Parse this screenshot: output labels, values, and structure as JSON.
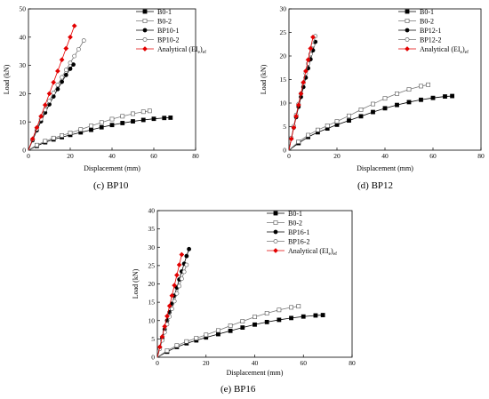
{
  "figure_title": "",
  "chart_data": [
    {
      "id": "c",
      "type": "line",
      "caption_letter": "(c)",
      "caption_text": "BP10",
      "xlabel": "Displacement (mm)",
      "ylabel": "Load (kN)",
      "xlim": [
        0,
        80
      ],
      "ylim": [
        0,
        50
      ],
      "xticks": [
        0,
        20,
        40,
        60,
        80
      ],
      "yticks": [
        0,
        10,
        20,
        30,
        40,
        50
      ],
      "grid": false,
      "legend_position": "top-right",
      "series": [
        {
          "name": "B0-1",
          "marker": "square",
          "fill": "#000000",
          "line": "#000000",
          "x": [
            0,
            4,
            8,
            12,
            16,
            20,
            25,
            30,
            35,
            40,
            45,
            50,
            55,
            60,
            65,
            68
          ],
          "y": [
            0,
            1.5,
            2.8,
            3.8,
            4.6,
            5.4,
            6.3,
            7.2,
            8.1,
            8.9,
            9.6,
            10.2,
            10.7,
            11.1,
            11.4,
            11.5
          ]
        },
        {
          "name": "B0-2",
          "marker": "square",
          "fill": "#ffffff",
          "line": "#777777",
          "x": [
            0,
            4,
            8,
            12,
            16,
            20,
            25,
            30,
            35,
            40,
            45,
            50,
            55,
            58
          ],
          "y": [
            0,
            1.8,
            3.2,
            4.3,
            5.2,
            6.1,
            7.3,
            8.6,
            9.8,
            11.0,
            12.0,
            12.9,
            13.6,
            13.9
          ]
        },
        {
          "name": "BP10-1",
          "marker": "circle",
          "fill": "#000000",
          "line": "#000000",
          "x": [
            0,
            2,
            4,
            6,
            8,
            10,
            12,
            14,
            16,
            18,
            20,
            21.5
          ],
          "y": [
            0,
            3.5,
            7,
            10.2,
            13.3,
            16.2,
            19,
            21.6,
            24.2,
            26.6,
            28.8,
            30.3
          ]
        },
        {
          "name": "BP10-2",
          "marker": "circle",
          "fill": "#ffffff",
          "line": "#777777",
          "x": [
            0,
            2,
            4,
            6,
            8,
            10,
            12,
            14,
            16,
            18,
            20,
            22,
            24,
            26.5
          ],
          "y": [
            0,
            3.8,
            7.5,
            11,
            14.3,
            17.4,
            20.3,
            23.1,
            25.8,
            28.4,
            30.9,
            33.3,
            35.7,
            38.8
          ]
        },
        {
          "name": "Analytical (EI<sub>e</sub>)<sub>ef</sub>",
          "marker": "diamond",
          "fill": "#e30000",
          "line": "#e30000",
          "x": [
            0,
            2,
            4,
            6,
            8,
            10,
            12,
            14,
            16,
            18,
            20,
            22
          ],
          "y": [
            0,
            4,
            8,
            12,
            16,
            20,
            24,
            28,
            32,
            36,
            40,
            44
          ]
        }
      ]
    },
    {
      "id": "d",
      "type": "line",
      "caption_letter": "(d)",
      "caption_text": "BP12",
      "xlabel": "Displacement (mm)",
      "ylabel": "Load (kN)",
      "xlim": [
        0,
        80
      ],
      "ylim": [
        0,
        30
      ],
      "xticks": [
        0,
        20,
        40,
        60,
        80
      ],
      "yticks": [
        0,
        5,
        10,
        15,
        20,
        25,
        30
      ],
      "grid": false,
      "legend_position": "top-right",
      "series": [
        {
          "name": "B0-1",
          "marker": "square",
          "fill": "#000000",
          "line": "#000000",
          "x": [
            0,
            4,
            8,
            12,
            16,
            20,
            25,
            30,
            35,
            40,
            45,
            50,
            55,
            60,
            65,
            68
          ],
          "y": [
            0,
            1.5,
            2.8,
            3.8,
            4.6,
            5.4,
            6.3,
            7.2,
            8.1,
            8.9,
            9.6,
            10.2,
            10.7,
            11.1,
            11.4,
            11.5
          ]
        },
        {
          "name": "B0-2",
          "marker": "square",
          "fill": "#ffffff",
          "line": "#777777",
          "x": [
            0,
            4,
            8,
            12,
            16,
            20,
            25,
            30,
            35,
            40,
            45,
            50,
            55,
            58
          ],
          "y": [
            0,
            1.8,
            3.2,
            4.3,
            5.2,
            6.1,
            7.3,
            8.6,
            9.8,
            11.0,
            12.0,
            12.9,
            13.6,
            13.9
          ]
        },
        {
          "name": "BP12-1",
          "marker": "circle",
          "fill": "#000000",
          "line": "#000000",
          "x": [
            0,
            1,
            2,
            3,
            4,
            5,
            6,
            7,
            8,
            9,
            10,
            11
          ],
          "y": [
            0,
            2.5,
            4.8,
            7,
            9.2,
            11.3,
            13.4,
            15.4,
            17.4,
            19.3,
            21.2,
            23.0
          ]
        },
        {
          "name": "BP12-2",
          "marker": "circle",
          "fill": "#ffffff",
          "line": "#777777",
          "x": [
            0,
            1,
            2,
            3,
            4,
            5,
            6,
            7,
            8,
            9,
            10,
            11
          ],
          "y": [
            0,
            2.6,
            5.1,
            7.5,
            9.8,
            12,
            14.2,
            16.3,
            18.4,
            20.4,
            22.3,
            24.2
          ]
        },
        {
          "name": "Analytical (EI<sub>e</sub>)<sub>ef</sub>",
          "marker": "diamond",
          "fill": "#e30000",
          "line": "#e30000",
          "x": [
            0,
            1,
            2,
            3,
            4,
            5,
            6,
            7,
            8,
            9,
            10
          ],
          "y": [
            0,
            2.4,
            4.8,
            7.2,
            9.6,
            12,
            14.4,
            16.8,
            19.2,
            21.6,
            24
          ]
        }
      ]
    },
    {
      "id": "e",
      "type": "line",
      "caption_letter": "(e)",
      "caption_text": "BP16",
      "xlabel": "Displacement (mm)",
      "ylabel": "Load (kN)",
      "xlim": [
        0,
        80
      ],
      "ylim": [
        0,
        40
      ],
      "xticks": [
        0,
        20,
        40,
        60,
        80
      ],
      "yticks": [
        0,
        5,
        10,
        15,
        20,
        25,
        30,
        35,
        40
      ],
      "grid": false,
      "legend_position": "top-right",
      "series": [
        {
          "name": "B0-1",
          "marker": "square",
          "fill": "#000000",
          "line": "#000000",
          "x": [
            0,
            4,
            8,
            12,
            16,
            20,
            25,
            30,
            35,
            40,
            45,
            50,
            55,
            60,
            65,
            68
          ],
          "y": [
            0,
            1.5,
            2.8,
            3.8,
            4.6,
            5.4,
            6.3,
            7.2,
            8.1,
            8.9,
            9.6,
            10.2,
            10.7,
            11.1,
            11.4,
            11.5
          ]
        },
        {
          "name": "B0-2",
          "marker": "square",
          "fill": "#ffffff",
          "line": "#777777",
          "x": [
            0,
            4,
            8,
            12,
            16,
            20,
            25,
            30,
            35,
            40,
            45,
            50,
            55,
            58
          ],
          "y": [
            0,
            1.8,
            3.2,
            4.3,
            5.2,
            6.1,
            7.3,
            8.6,
            9.8,
            11.0,
            12.0,
            12.9,
            13.6,
            13.9
          ]
        },
        {
          "name": "BP16-1",
          "marker": "circle",
          "fill": "#000000",
          "line": "#000000",
          "x": [
            0,
            1,
            2,
            3,
            4,
            5,
            6,
            7,
            8,
            9,
            10,
            11,
            12,
            13
          ],
          "y": [
            0,
            2.6,
            5.2,
            7.6,
            10,
            12.3,
            14.6,
            16.8,
            19,
            21.2,
            23.4,
            25.5,
            27.6,
            29.5
          ]
        },
        {
          "name": "BP16-2",
          "marker": "circle",
          "fill": "#ffffff",
          "line": "#777777",
          "x": [
            0,
            1,
            2,
            3,
            4,
            5,
            6,
            7,
            8,
            9,
            10,
            11,
            12
          ],
          "y": [
            0,
            2.3,
            4.6,
            6.8,
            9,
            11.1,
            13.2,
            15.3,
            17.4,
            19.4,
            21.4,
            23.3,
            25.2
          ]
        },
        {
          "name": "Analytical (EI<sub>e</sub>)<sub>ef</sub>",
          "marker": "diamond",
          "fill": "#e30000",
          "line": "#e30000",
          "x": [
            0,
            1,
            2,
            3,
            4,
            5,
            6,
            7,
            8,
            9,
            10
          ],
          "y": [
            0,
            2.8,
            5.6,
            8.4,
            11.2,
            14,
            16.8,
            19.6,
            22.4,
            25.2,
            28
          ]
        }
      ]
    }
  ]
}
